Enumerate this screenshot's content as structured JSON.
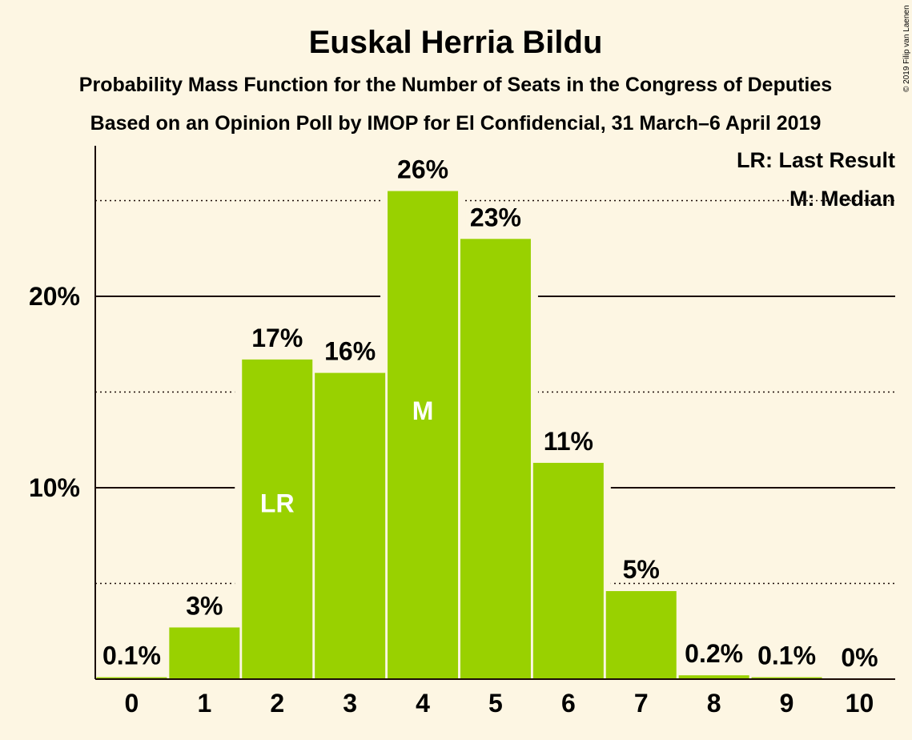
{
  "chart_data": {
    "type": "bar",
    "title": "Euskal Herria Bildu",
    "subtitle_1": "Probability Mass Function for the Number of Seats in the Congress of Deputies",
    "subtitle_2": "Based on an Opinion Poll by IMOP for El Confidencial, 31 March–6 April 2019",
    "categories": [
      "0",
      "1",
      "2",
      "3",
      "4",
      "5",
      "6",
      "7",
      "8",
      "9",
      "10"
    ],
    "values": [
      0.1,
      2.7,
      16.7,
      16.0,
      25.5,
      23.0,
      11.3,
      4.6,
      0.2,
      0.1,
      0.0
    ],
    "data_labels": [
      "0.1%",
      "3%",
      "17%",
      "16%",
      "26%",
      "23%",
      "11%",
      "5%",
      "0.2%",
      "0.1%",
      "0%"
    ],
    "y_ticks": [
      {
        "value": 10,
        "label": "10%"
      },
      {
        "value": 20,
        "label": "20%"
      }
    ],
    "minor_gridlines": [
      5,
      15,
      25
    ],
    "ylim": [
      0,
      27.8
    ],
    "markers": [
      {
        "category": "2",
        "label": "LR"
      },
      {
        "category": "4",
        "label": "M"
      }
    ],
    "legend": [
      "LR: Last Result",
      "M: Median"
    ],
    "legend_position": "top-right",
    "bar_color": "#99d100",
    "background_color": "#fdf6e3",
    "text_color": "#1a0a06",
    "copyright": "© 2019 Filip van Laenen"
  }
}
